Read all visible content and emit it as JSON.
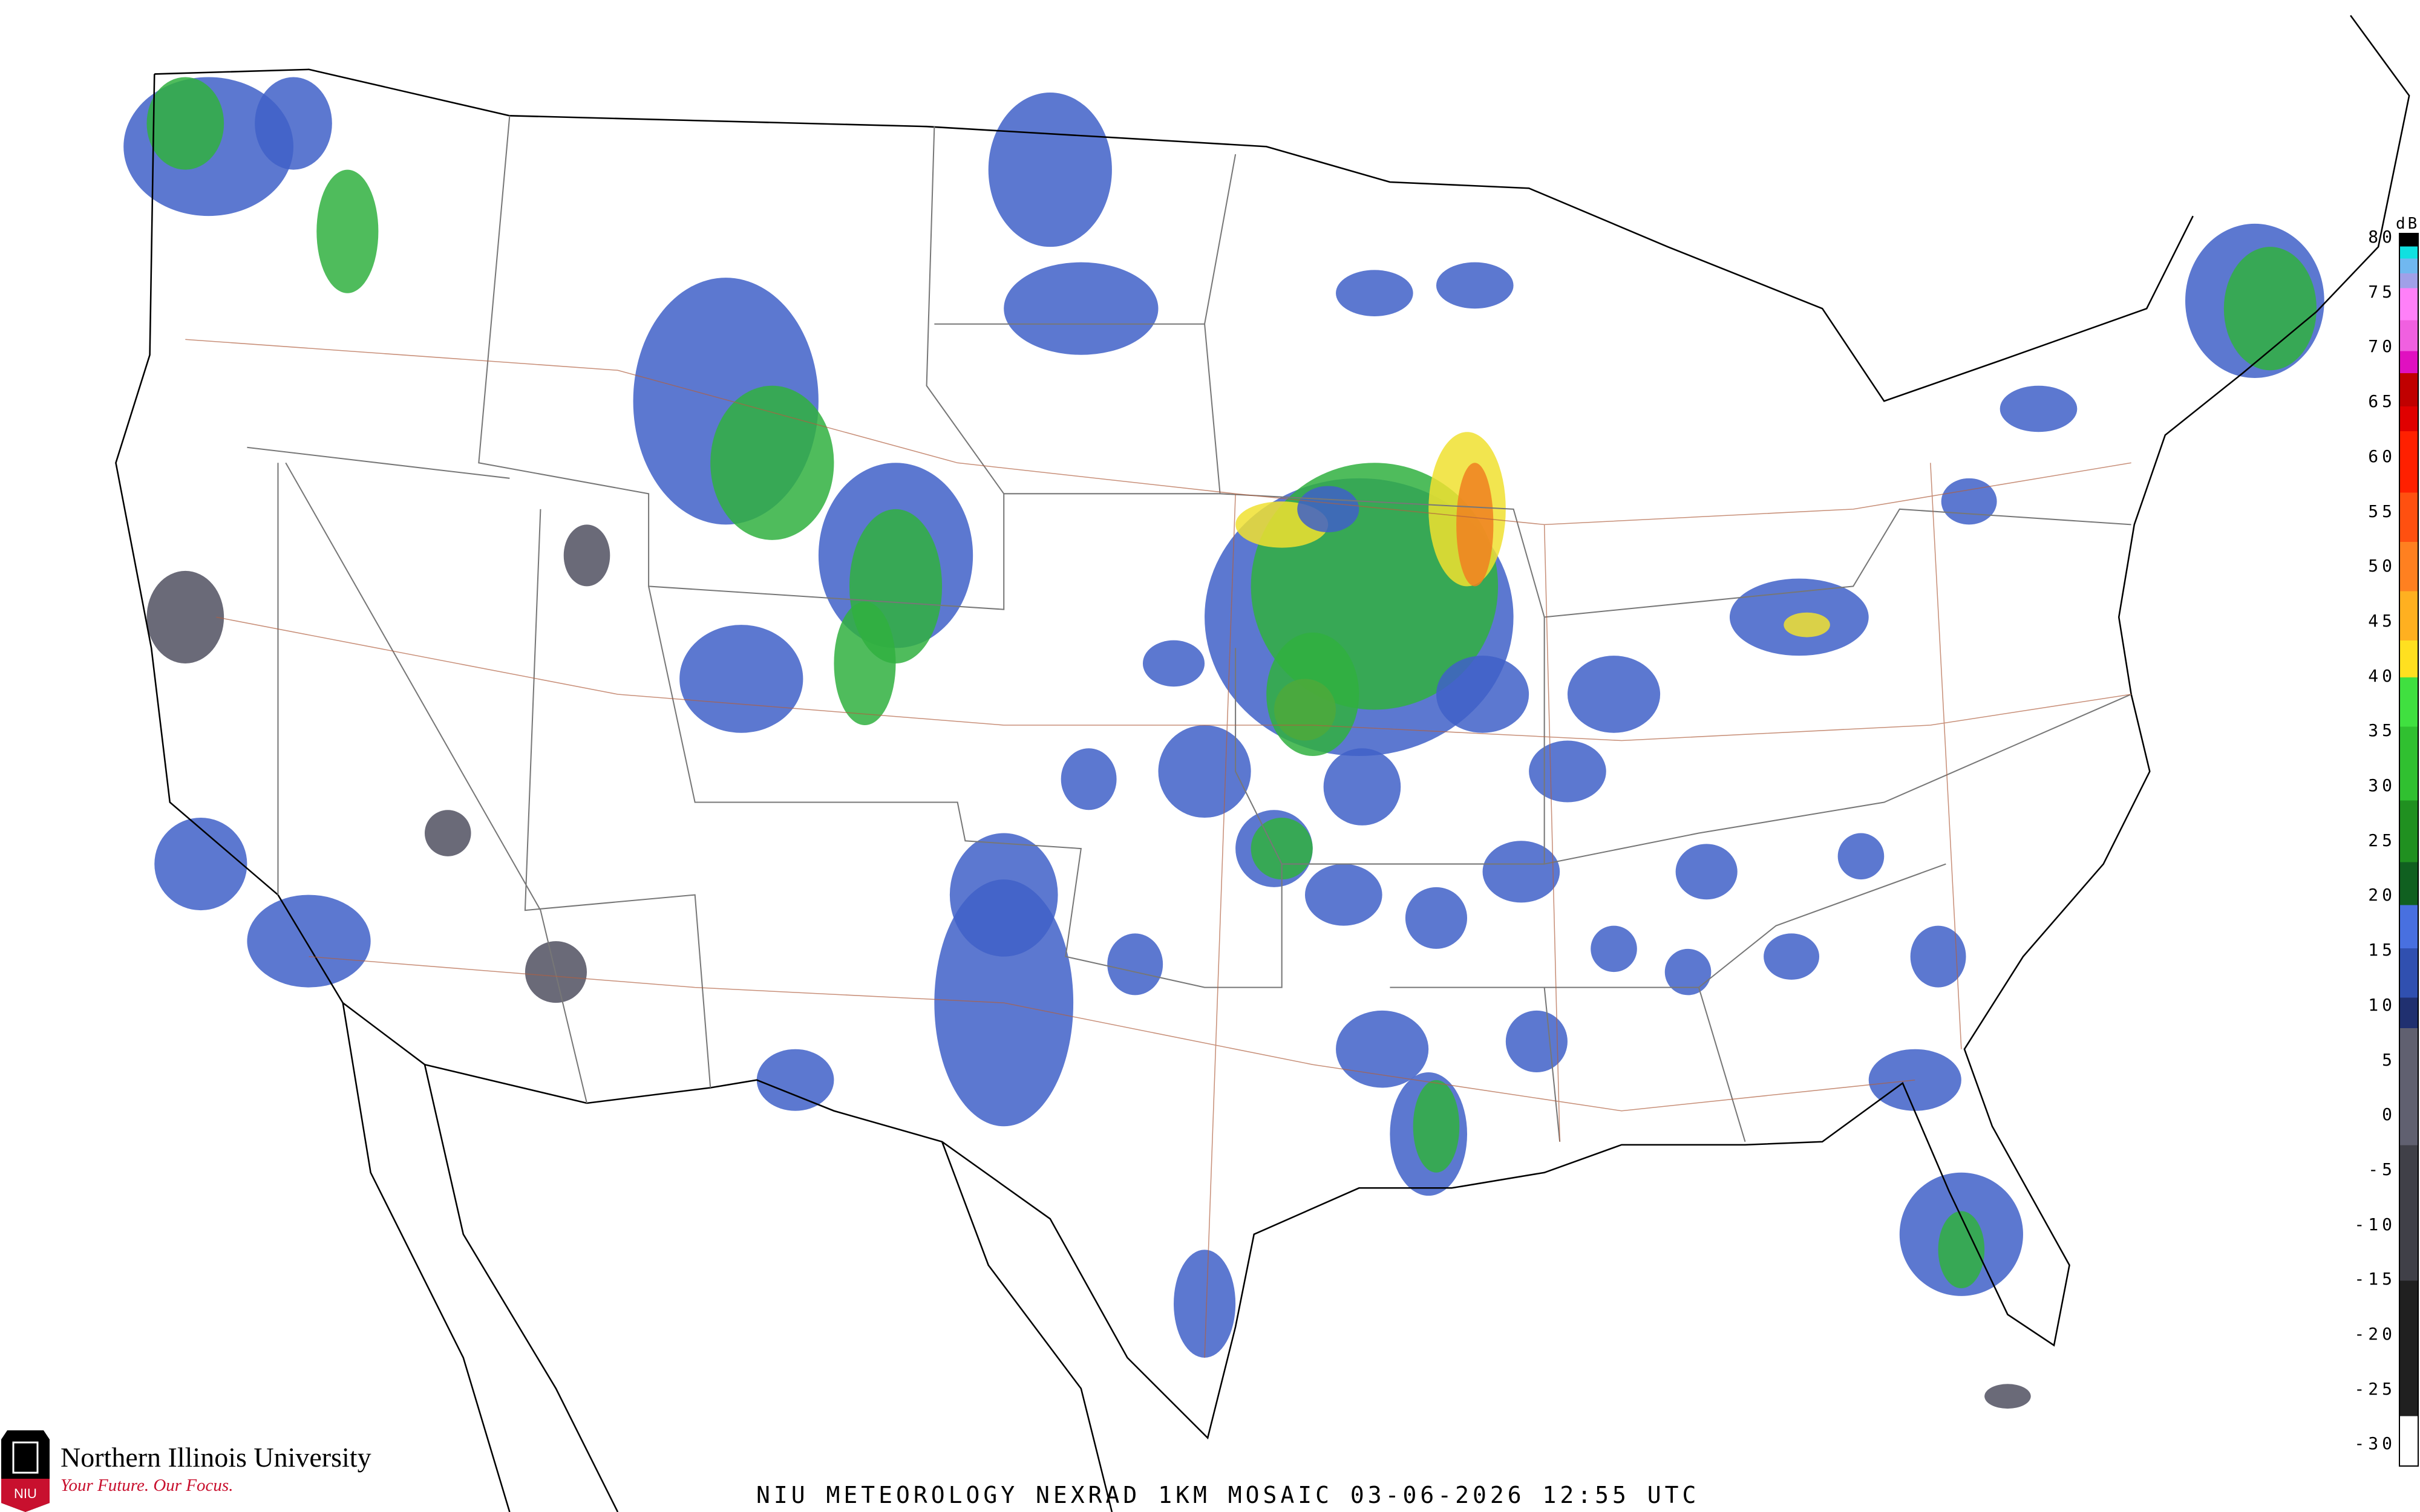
{
  "title": "NIU METEOROLOGY NEXRAD 1KM MOSAIC  03-06-2026 12:55 UTC",
  "branding": {
    "university": "Northern Illinois University",
    "tagline": "Your Future. Our Focus.",
    "logo_text": "NIU"
  },
  "legend": {
    "unit": "dBZ",
    "labels": [
      "80",
      "75",
      "70",
      "65",
      "60",
      "55",
      "50",
      "45",
      "40",
      "35",
      "30",
      "25",
      "20",
      "15",
      "10",
      "5",
      "0",
      "-5",
      "-10",
      "-15",
      "-20",
      "-25",
      "-30"
    ]
  },
  "colors": {
    "light": "#4060c8",
    "moderate": "#30b040",
    "heavy": "#f0e030",
    "intense": "#f08020",
    "clutter": "#505060"
  }
}
